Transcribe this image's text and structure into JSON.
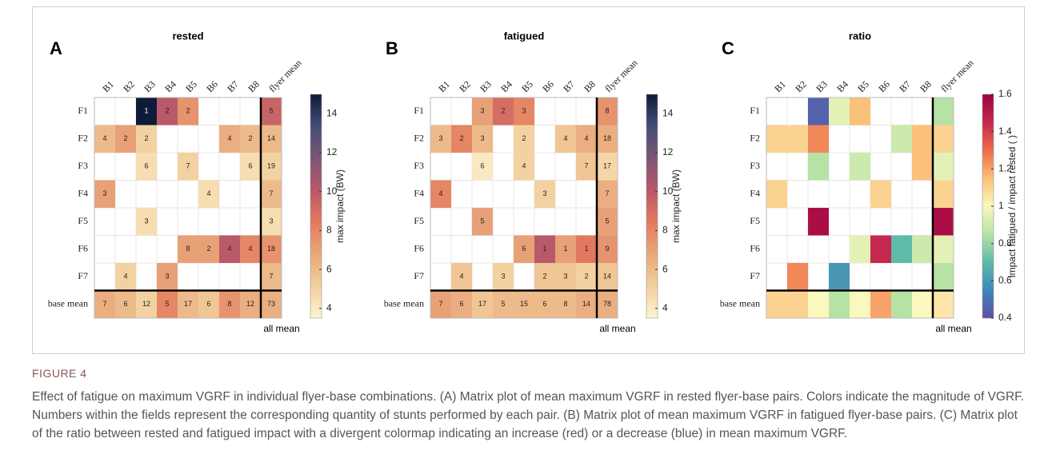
{
  "figure_label": "FIGURE 4",
  "caption": "Effect of fatigue on maximum VGRF in individual flyer-base combinations. (A) Matrix plot of mean maximum VGRF in rested flyer-base pairs. Colors indicate the magnitude of VGRF. Numbers within the fields represent the corresponding quantity of stunts performed by each pair. (B) Matrix plot of mean maximum VGRF in fatigued flyer-base pairs. (C) Matrix plot of the ratio between rested and fatigued impact with a divergent colormap indicating an increase (red) or a decrease (blue) in mean maximum VGRF.",
  "chart_data": [
    {
      "type": "heatmap",
      "panel": "A",
      "title": "rested",
      "x": [
        "B1",
        "B2",
        "B3",
        "B4",
        "B5",
        "B6",
        "B7",
        "B8",
        "flyer mean"
      ],
      "y": [
        "F1",
        "F2",
        "F3",
        "F4",
        "F5",
        "F6",
        "F7",
        "base mean"
      ],
      "values": [
        [
          null,
          null,
          15,
          10,
          7.5,
          null,
          null,
          null,
          9.5
        ],
        [
          6,
          7,
          5,
          null,
          null,
          null,
          6.5,
          6,
          6
        ],
        [
          null,
          null,
          4.5,
          null,
          5,
          null,
          null,
          4.5,
          5
        ],
        [
          7,
          null,
          null,
          null,
          null,
          4.5,
          null,
          null,
          6
        ],
        [
          null,
          null,
          4.5,
          null,
          null,
          null,
          null,
          null,
          4.5
        ],
        [
          null,
          null,
          null,
          null,
          7,
          7,
          10,
          8,
          7.5
        ],
        [
          null,
          5,
          null,
          7,
          null,
          null,
          null,
          null,
          6
        ],
        [
          6.5,
          6,
          5,
          8,
          6,
          5.5,
          7.5,
          6.5,
          6.5
        ]
      ],
      "counts": [
        [
          null,
          null,
          1,
          2,
          2,
          null,
          null,
          null,
          5
        ],
        [
          4,
          2,
          2,
          null,
          null,
          null,
          4,
          2,
          14
        ],
        [
          null,
          null,
          6,
          null,
          7,
          null,
          null,
          6,
          19
        ],
        [
          3,
          null,
          null,
          null,
          null,
          4,
          null,
          null,
          7
        ],
        [
          null,
          null,
          3,
          null,
          null,
          null,
          null,
          null,
          3
        ],
        [
          null,
          null,
          null,
          null,
          8,
          2,
          4,
          4,
          18
        ],
        [
          null,
          4,
          null,
          3,
          null,
          null,
          null,
          null,
          7
        ],
        [
          7,
          6,
          12,
          5,
          17,
          6,
          8,
          12,
          73
        ]
      ],
      "colorbar_label": "max impact (BW)",
      "clim": [
        3.5,
        15
      ],
      "cticks": [
        4,
        6,
        8,
        10,
        12,
        14
      ],
      "colormap": [
        "#fdf3d4",
        "#f2cf9c",
        "#e9a77a",
        "#e37a5e",
        "#b8586a",
        "#7d5576",
        "#434e78",
        "#0d1b38"
      ],
      "corner_label": "all mean"
    },
    {
      "type": "heatmap",
      "panel": "B",
      "title": "fatigued",
      "x": [
        "B1",
        "B2",
        "B3",
        "B4",
        "B5",
        "B6",
        "B7",
        "B8",
        "flyer mean"
      ],
      "y": [
        "F1",
        "F2",
        "F3",
        "F4",
        "F5",
        "F6",
        "F7",
        "base mean"
      ],
      "values": [
        [
          null,
          null,
          7,
          9,
          8,
          null,
          null,
          null,
          7.5
        ],
        [
          6,
          8,
          6,
          null,
          5,
          null,
          5.5,
          6.5,
          6.5
        ],
        [
          null,
          null,
          4,
          null,
          5,
          null,
          null,
          5.5,
          4.8
        ],
        [
          8,
          null,
          null,
          null,
          null,
          5,
          null,
          null,
          6.5
        ],
        [
          null,
          null,
          7,
          null,
          null,
          null,
          null,
          null,
          7
        ],
        [
          null,
          null,
          null,
          null,
          7,
          10,
          7,
          8.5,
          7.5
        ],
        [
          null,
          5.5,
          null,
          5,
          null,
          5.5,
          5.5,
          5,
          5.5
        ],
        [
          7,
          6.5,
          5.5,
          6,
          6,
          6,
          6,
          6.5,
          6.5
        ]
      ],
      "counts": [
        [
          null,
          null,
          3,
          2,
          3,
          null,
          null,
          null,
          8
        ],
        [
          3,
          2,
          3,
          null,
          2,
          null,
          4,
          4,
          18
        ],
        [
          null,
          null,
          6,
          null,
          4,
          null,
          null,
          7,
          17
        ],
        [
          4,
          null,
          null,
          null,
          null,
          3,
          null,
          null,
          7
        ],
        [
          null,
          null,
          5,
          null,
          null,
          null,
          null,
          null,
          5
        ],
        [
          null,
          null,
          null,
          null,
          6,
          1,
          1,
          1,
          9
        ],
        [
          null,
          4,
          null,
          3,
          null,
          2,
          3,
          2,
          14
        ],
        [
          7,
          6,
          17,
          5,
          15,
          6,
          8,
          14,
          78
        ]
      ],
      "colorbar_label": "max impact (BW)",
      "clim": [
        3.5,
        15
      ],
      "cticks": [
        4,
        6,
        8,
        10,
        12,
        14
      ],
      "colormap": [
        "#fdf3d4",
        "#f2cf9c",
        "#e9a77a",
        "#e37a5e",
        "#b8586a",
        "#7d5576",
        "#434e78",
        "#0d1b38"
      ],
      "corner_label": "all mean"
    },
    {
      "type": "heatmap",
      "panel": "C",
      "title": "ratio",
      "x": [
        "B1",
        "B2",
        "B3",
        "B4",
        "B5",
        "B6",
        "B7",
        "B8",
        "flyer mean"
      ],
      "y": [
        "F1",
        "F2",
        "F3",
        "F4",
        "F5",
        "F6",
        "F7",
        "base mean"
      ],
      "values": [
        [
          null,
          null,
          0.45,
          0.95,
          1.15,
          null,
          null,
          null,
          0.85
        ],
        [
          1.1,
          1.1,
          1.25,
          null,
          null,
          null,
          0.9,
          1.15,
          1.1
        ],
        [
          null,
          null,
          0.85,
          null,
          0.9,
          null,
          null,
          1.15,
          0.95
        ],
        [
          1.1,
          null,
          null,
          null,
          null,
          1.1,
          null,
          null,
          1.1
        ],
        [
          null,
          null,
          1.55,
          null,
          null,
          null,
          null,
          null,
          1.55
        ],
        [
          null,
          null,
          null,
          null,
          0.95,
          1.45,
          0.7,
          0.9,
          0.95
        ],
        [
          null,
          1.25,
          null,
          0.6,
          null,
          null,
          null,
          null,
          0.85
        ],
        [
          1.1,
          1.1,
          1.0,
          0.85,
          1.0,
          1.2,
          0.85,
          1.0,
          1.05
        ]
      ],
      "colorbar_label": "impact fatigued / impact rested ( )",
      "clim": [
        0.4,
        1.6
      ],
      "cticks": [
        0.4,
        0.6,
        0.8,
        1,
        1.2,
        1.4,
        1.6
      ],
      "colormap": [
        "#5e4fa2",
        "#3f86bc",
        "#5fbaa8",
        "#b6e2a5",
        "#fbf8bf",
        "#fbc07a",
        "#ee6a48",
        "#c4284f",
        "#9e0142"
      ],
      "corner_label": "all mean"
    }
  ]
}
